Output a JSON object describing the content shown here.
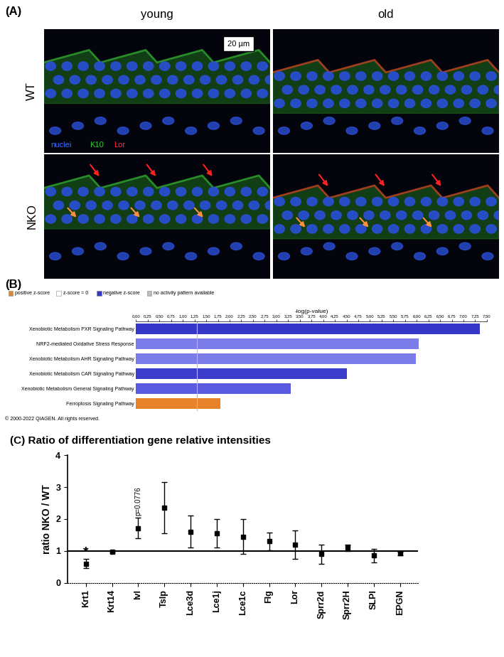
{
  "image_panel": {
    "panel_label": "(A)",
    "columns": [
      "young",
      "old"
    ],
    "rows": [
      "WT",
      "NKO"
    ],
    "stain_legend": [
      {
        "text": "nuclei",
        "color": "#3a6bff"
      },
      {
        "text": "K10",
        "color": "#33cc33"
      },
      {
        "text": "Lor",
        "color": "#ff3030"
      }
    ],
    "scale_bar": "20 µm"
  },
  "chart_data": [
    {
      "type": "bar",
      "panel_label": "(B)",
      "orientation": "horizontal",
      "x_label": "-log(p-value)",
      "categories": [
        "Xenobiotic Metabolism PXR Signaling Pathway",
        "NRF2-mediated Oxidative Stress Response",
        "Xenobiotic Metabolism AHR Signaling Pathway",
        "Xenobiotic Metabolism CAR Signaling Pathway",
        "Xenobiotic Metabolism General Signaling Pathway",
        "Ferroptosis Signaling Pathway"
      ],
      "values": [
        7.35,
        6.05,
        5.98,
        4.5,
        3.3,
        1.8
      ],
      "colors": [
        "#3535c8",
        "#7b7bea",
        "#7b7bea",
        "#3d3dcc",
        "#5a5ae0",
        "#e8822a"
      ],
      "threshold": 1.3,
      "z_score_key": [
        {
          "name": "positive z-score",
          "color": "#e8822a"
        },
        {
          "name": "z-score = 0",
          "color": "#ffffff"
        },
        {
          "name": "negative z-score",
          "color": "#3535c8"
        },
        {
          "name": "no activity pattern available",
          "color": "#bbbbbb"
        }
      ],
      "footnote": "© 2000-2022 QIAGEN. All rights reserved.",
      "xlim": [
        0,
        7.5
      ],
      "xticks": [
        {
          "value": 0,
          "label": "0,00"
        },
        {
          "value": 0.25,
          "label": "0,25"
        },
        {
          "value": 0.5,
          "label": "0,50"
        },
        {
          "value": 0.75,
          "label": "0,75"
        },
        {
          "value": 1,
          "label": "1,00"
        },
        {
          "value": 1.25,
          "label": "1,25"
        },
        {
          "value": 1.5,
          "label": "1,50"
        },
        {
          "value": 1.75,
          "label": "1,75"
        },
        {
          "value": 2,
          "label": "2,00"
        },
        {
          "value": 2.25,
          "label": "2,25"
        },
        {
          "value": 2.5,
          "label": "2,50"
        },
        {
          "value": 2.75,
          "label": "2,75"
        },
        {
          "value": 3,
          "label": "3,00"
        },
        {
          "value": 3.25,
          "label": "3,25"
        },
        {
          "value": 3.5,
          "label": "3,50"
        },
        {
          "value": 3.75,
          "label": "3,75"
        },
        {
          "value": 4,
          "label": "4,00"
        },
        {
          "value": 4.25,
          "label": "4,25"
        },
        {
          "value": 4.5,
          "label": "4,50"
        },
        {
          "value": 4.75,
          "label": "4,75"
        },
        {
          "value": 5,
          "label": "5,00"
        },
        {
          "value": 5.25,
          "label": "5,25"
        },
        {
          "value": 5.5,
          "label": "5,50"
        },
        {
          "value": 5.75,
          "label": "5,75"
        },
        {
          "value": 6,
          "label": "6,00"
        },
        {
          "value": 6.25,
          "label": "6,25"
        },
        {
          "value": 6.5,
          "label": "6,50"
        },
        {
          "value": 6.75,
          "label": "6,75"
        },
        {
          "value": 7,
          "label": "7,00"
        },
        {
          "value": 7.25,
          "label": "7,25"
        },
        {
          "value": 7.5,
          "label": "7,50"
        }
      ]
    },
    {
      "type": "scatter",
      "panel_label": "(C)",
      "title": "Ratio of differentiation gene relative intensities",
      "y_label": "ratio NKO / WT",
      "categories": [
        "Krt1",
        "Krt14",
        "Ivl",
        "Tslp",
        "Lce3d",
        "Lce1j",
        "Lce1c",
        "Flg",
        "Lor",
        "Sprr2d",
        "Sprr2H",
        "SLPI",
        "EPGN"
      ],
      "values": [
        0.6,
        0.98,
        1.72,
        2.35,
        1.6,
        1.55,
        1.45,
        1.3,
        1.2,
        0.9,
        1.1,
        0.85,
        0.92
      ],
      "errors": [
        0.15,
        0.03,
        0.32,
        0.8,
        0.5,
        0.45,
        0.55,
        0.28,
        0.45,
        0.3,
        0.1,
        0.22,
        0.06
      ],
      "reference_line": 1,
      "color": "#000000",
      "marker": "square",
      "annotations": [
        {
          "text": "*",
          "category": "Krt1"
        },
        {
          "text": "p=0.0776",
          "category": "Ivl"
        }
      ],
      "ylim": [
        0,
        4
      ],
      "yticks": [
        0,
        1,
        2,
        3,
        4
      ]
    }
  ]
}
